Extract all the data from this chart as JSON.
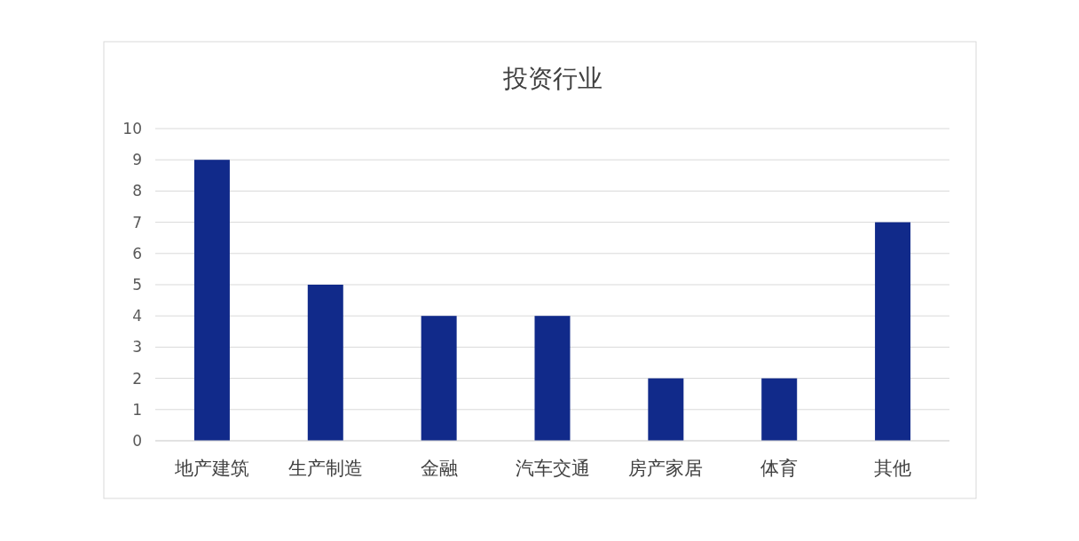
{
  "chart_data": {
    "type": "bar",
    "title": "投资行业",
    "categories": [
      "地产建筑",
      "生产制造",
      "金融",
      "汽车交通",
      "房产家居",
      "体育",
      "其他"
    ],
    "values": [
      9,
      5,
      4,
      4,
      2,
      2,
      7
    ],
    "color": "#112a8a",
    "ylim": [
      0,
      10
    ],
    "yticks": [
      0,
      1,
      2,
      3,
      4,
      5,
      6,
      7,
      8,
      9,
      10
    ],
    "grid": "y"
  }
}
